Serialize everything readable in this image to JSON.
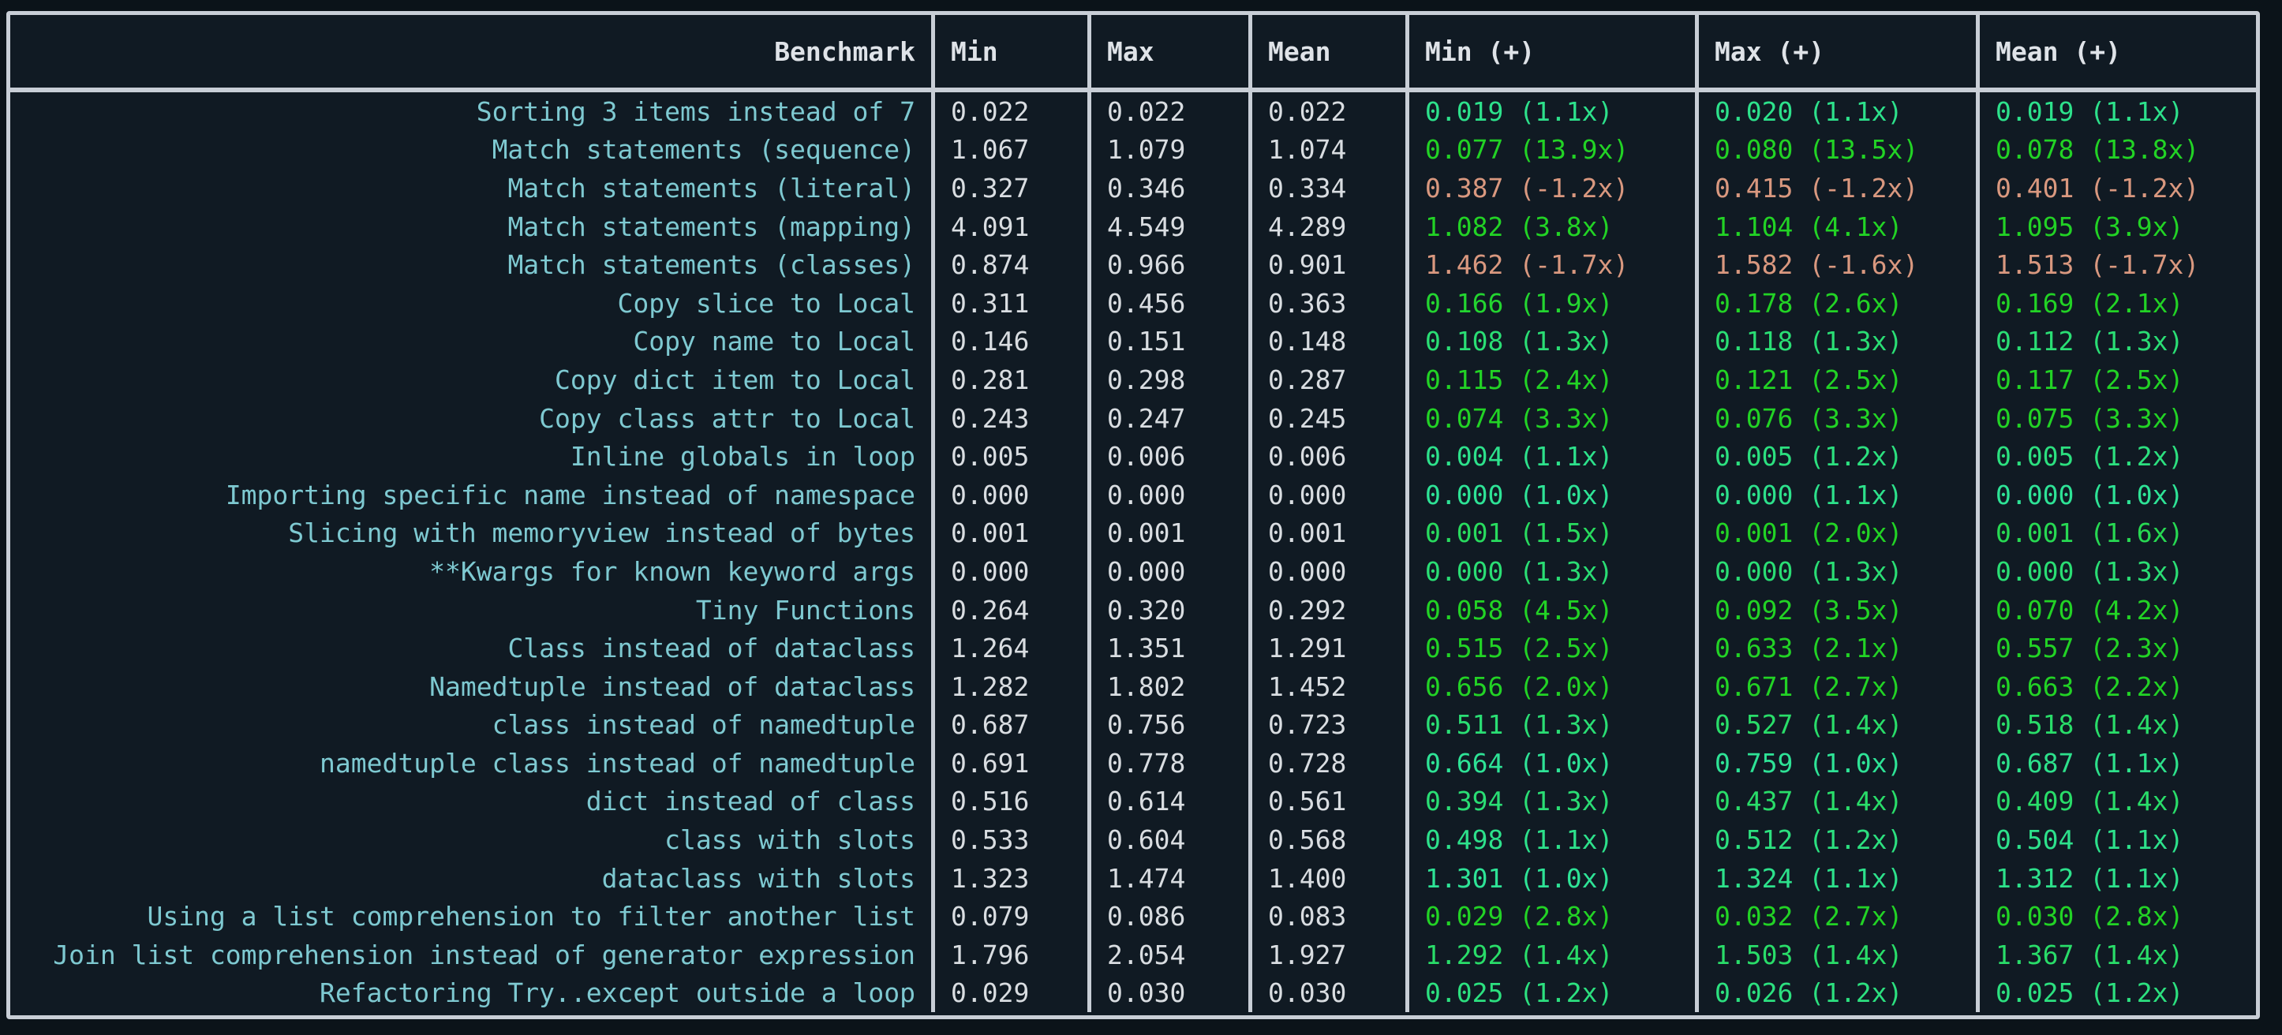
{
  "colors": {
    "background": "#0b1319",
    "table_background": "#101a23",
    "border": "#c8ced6",
    "header_text": "#dfe3e8",
    "benchmark_text": "#7ec9d1",
    "value_text": "#d9dde1",
    "speedup_low": "#2ee396",
    "speedup_high": "#22d325",
    "regression": "#d9987f"
  },
  "table": {
    "columns": [
      "Benchmark",
      "Min",
      "Max",
      "Mean",
      "Min (+)",
      "Max (+)",
      "Mean (+)"
    ],
    "rows": [
      {
        "name": "Sorting 3 items instead of 7",
        "min": "0.022",
        "max": "0.022",
        "mean": "0.022",
        "min_plus": {
          "v": "0.019",
          "x": "1.1"
        },
        "max_plus": {
          "v": "0.020",
          "x": "1.1"
        },
        "mean_plus": {
          "v": "0.019",
          "x": "1.1"
        }
      },
      {
        "name": "Match statements (sequence)",
        "min": "1.067",
        "max": "1.079",
        "mean": "1.074",
        "min_plus": {
          "v": "0.077",
          "x": "13.9"
        },
        "max_plus": {
          "v": "0.080",
          "x": "13.5"
        },
        "mean_plus": {
          "v": "0.078",
          "x": "13.8"
        }
      },
      {
        "name": "Match statements (literal)",
        "min": "0.327",
        "max": "0.346",
        "mean": "0.334",
        "min_plus": {
          "v": "0.387",
          "x": "-1.2"
        },
        "max_plus": {
          "v": "0.415",
          "x": "-1.2"
        },
        "mean_plus": {
          "v": "0.401",
          "x": "-1.2"
        }
      },
      {
        "name": "Match statements (mapping)",
        "min": "4.091",
        "max": "4.549",
        "mean": "4.289",
        "min_plus": {
          "v": "1.082",
          "x": "3.8"
        },
        "max_plus": {
          "v": "1.104",
          "x": "4.1"
        },
        "mean_plus": {
          "v": "1.095",
          "x": "3.9"
        }
      },
      {
        "name": "Match statements (classes)",
        "min": "0.874",
        "max": "0.966",
        "mean": "0.901",
        "min_plus": {
          "v": "1.462",
          "x": "-1.7"
        },
        "max_plus": {
          "v": "1.582",
          "x": "-1.6"
        },
        "mean_plus": {
          "v": "1.513",
          "x": "-1.7"
        }
      },
      {
        "name": "Copy slice to Local",
        "min": "0.311",
        "max": "0.456",
        "mean": "0.363",
        "min_plus": {
          "v": "0.166",
          "x": "1.9"
        },
        "max_plus": {
          "v": "0.178",
          "x": "2.6"
        },
        "mean_plus": {
          "v": "0.169",
          "x": "2.1"
        }
      },
      {
        "name": "Copy name to Local",
        "min": "0.146",
        "max": "0.151",
        "mean": "0.148",
        "min_plus": {
          "v": "0.108",
          "x": "1.3"
        },
        "max_plus": {
          "v": "0.118",
          "x": "1.3"
        },
        "mean_plus": {
          "v": "0.112",
          "x": "1.3"
        }
      },
      {
        "name": "Copy dict item to Local",
        "min": "0.281",
        "max": "0.298",
        "mean": "0.287",
        "min_plus": {
          "v": "0.115",
          "x": "2.4"
        },
        "max_plus": {
          "v": "0.121",
          "x": "2.5"
        },
        "mean_plus": {
          "v": "0.117",
          "x": "2.5"
        }
      },
      {
        "name": "Copy class attr to Local",
        "min": "0.243",
        "max": "0.247",
        "mean": "0.245",
        "min_plus": {
          "v": "0.074",
          "x": "3.3"
        },
        "max_plus": {
          "v": "0.076",
          "x": "3.3"
        },
        "mean_plus": {
          "v": "0.075",
          "x": "3.3"
        }
      },
      {
        "name": "Inline globals in loop",
        "min": "0.005",
        "max": "0.006",
        "mean": "0.006",
        "min_plus": {
          "v": "0.004",
          "x": "1.1"
        },
        "max_plus": {
          "v": "0.005",
          "x": "1.2"
        },
        "mean_plus": {
          "v": "0.005",
          "x": "1.2"
        }
      },
      {
        "name": "Importing specific name instead of namespace",
        "min": "0.000",
        "max": "0.000",
        "mean": "0.000",
        "min_plus": {
          "v": "0.000",
          "x": "1.0"
        },
        "max_plus": {
          "v": "0.000",
          "x": "1.1"
        },
        "mean_plus": {
          "v": "0.000",
          "x": "1.0"
        }
      },
      {
        "name": "Slicing with memoryview instead of bytes",
        "min": "0.001",
        "max": "0.001",
        "mean": "0.001",
        "min_plus": {
          "v": "0.001",
          "x": "1.5"
        },
        "max_plus": {
          "v": "0.001",
          "x": "2.0"
        },
        "mean_plus": {
          "v": "0.001",
          "x": "1.6"
        }
      },
      {
        "name": "**Kwargs for known keyword args",
        "min": "0.000",
        "max": "0.000",
        "mean": "0.000",
        "min_plus": {
          "v": "0.000",
          "x": "1.3"
        },
        "max_plus": {
          "v": "0.000",
          "x": "1.3"
        },
        "mean_plus": {
          "v": "0.000",
          "x": "1.3"
        }
      },
      {
        "name": "Tiny Functions",
        "min": "0.264",
        "max": "0.320",
        "mean": "0.292",
        "min_plus": {
          "v": "0.058",
          "x": "4.5"
        },
        "max_plus": {
          "v": "0.092",
          "x": "3.5"
        },
        "mean_plus": {
          "v": "0.070",
          "x": "4.2"
        }
      },
      {
        "name": "Class instead of dataclass",
        "min": "1.264",
        "max": "1.351",
        "mean": "1.291",
        "min_plus": {
          "v": "0.515",
          "x": "2.5"
        },
        "max_plus": {
          "v": "0.633",
          "x": "2.1"
        },
        "mean_plus": {
          "v": "0.557",
          "x": "2.3"
        }
      },
      {
        "name": "Namedtuple instead of dataclass",
        "min": "1.282",
        "max": "1.802",
        "mean": "1.452",
        "min_plus": {
          "v": "0.656",
          "x": "2.0"
        },
        "max_plus": {
          "v": "0.671",
          "x": "2.7"
        },
        "mean_plus": {
          "v": "0.663",
          "x": "2.2"
        }
      },
      {
        "name": "class instead of namedtuple",
        "min": "0.687",
        "max": "0.756",
        "mean": "0.723",
        "min_plus": {
          "v": "0.511",
          "x": "1.3"
        },
        "max_plus": {
          "v": "0.527",
          "x": "1.4"
        },
        "mean_plus": {
          "v": "0.518",
          "x": "1.4"
        }
      },
      {
        "name": "namedtuple class instead of namedtuple",
        "min": "0.691",
        "max": "0.778",
        "mean": "0.728",
        "min_plus": {
          "v": "0.664",
          "x": "1.0"
        },
        "max_plus": {
          "v": "0.759",
          "x": "1.0"
        },
        "mean_plus": {
          "v": "0.687",
          "x": "1.1"
        }
      },
      {
        "name": "dict instead of class",
        "min": "0.516",
        "max": "0.614",
        "mean": "0.561",
        "min_plus": {
          "v": "0.394",
          "x": "1.3"
        },
        "max_plus": {
          "v": "0.437",
          "x": "1.4"
        },
        "mean_plus": {
          "v": "0.409",
          "x": "1.4"
        }
      },
      {
        "name": "class with slots",
        "min": "0.533",
        "max": "0.604",
        "mean": "0.568",
        "min_plus": {
          "v": "0.498",
          "x": "1.1"
        },
        "max_plus": {
          "v": "0.512",
          "x": "1.2"
        },
        "mean_plus": {
          "v": "0.504",
          "x": "1.1"
        }
      },
      {
        "name": "dataclass with slots",
        "min": "1.323",
        "max": "1.474",
        "mean": "1.400",
        "min_plus": {
          "v": "1.301",
          "x": "1.0"
        },
        "max_plus": {
          "v": "1.324",
          "x": "1.1"
        },
        "mean_plus": {
          "v": "1.312",
          "x": "1.1"
        }
      },
      {
        "name": "Using a list comprehension to filter another list",
        "min": "0.079",
        "max": "0.086",
        "mean": "0.083",
        "min_plus": {
          "v": "0.029",
          "x": "2.8"
        },
        "max_plus": {
          "v": "0.032",
          "x": "2.7"
        },
        "mean_plus": {
          "v": "0.030",
          "x": "2.8"
        }
      },
      {
        "name": "Join list comprehension instead of generator expression",
        "min": "1.796",
        "max": "2.054",
        "mean": "1.927",
        "min_plus": {
          "v": "1.292",
          "x": "1.4"
        },
        "max_plus": {
          "v": "1.503",
          "x": "1.4"
        },
        "mean_plus": {
          "v": "1.367",
          "x": "1.4"
        }
      },
      {
        "name": "Refactoring Try..except outside a loop",
        "min": "0.029",
        "max": "0.030",
        "mean": "0.030",
        "min_plus": {
          "v": "0.025",
          "x": "1.2"
        },
        "max_plus": {
          "v": "0.026",
          "x": "1.2"
        },
        "mean_plus": {
          "v": "0.025",
          "x": "1.2"
        }
      }
    ]
  }
}
